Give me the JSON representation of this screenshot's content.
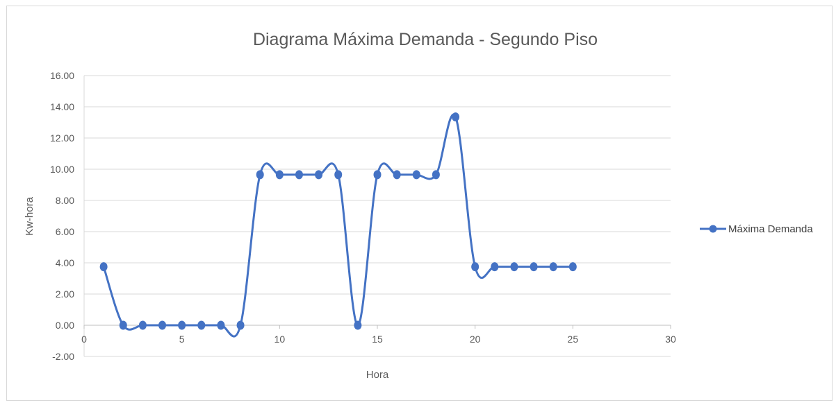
{
  "chart_data": {
    "type": "scatter",
    "title": "Diagrama Máxima Demanda - Segundo Piso",
    "xlabel": "Hora",
    "ylabel": "Kw-hora",
    "xlim": [
      0,
      30
    ],
    "ylim": [
      -2,
      16
    ],
    "x_ticks": [
      "0",
      "5",
      "10",
      "15",
      "20",
      "25",
      "30"
    ],
    "x_tick_values": [
      0,
      5,
      10,
      15,
      20,
      25,
      30
    ],
    "y_ticks": [
      "16.00",
      "14.00",
      "12.00",
      "10.00",
      "8.00",
      "6.00",
      "4.00",
      "2.00",
      "0.00",
      "-2.00"
    ],
    "y_tick_values": [
      16,
      14,
      12,
      10,
      8,
      6,
      4,
      2,
      0,
      -2
    ],
    "grid": "horizontal",
    "legend_position": "right",
    "smoothed": true,
    "series": [
      {
        "name": "Máxima Demanda",
        "color": "#4472c4",
        "x": [
          1,
          2,
          3,
          4,
          5,
          6,
          7,
          8,
          9,
          10,
          11,
          12,
          13,
          14,
          15,
          16,
          17,
          18,
          19,
          20,
          21,
          22,
          23,
          24,
          25
        ],
        "y": [
          3.75,
          0,
          0,
          0,
          0,
          0,
          0,
          0,
          9.65,
          9.65,
          9.65,
          9.65,
          9.65,
          0,
          9.65,
          9.65,
          9.65,
          9.65,
          13.35,
          3.75,
          3.75,
          3.75,
          3.75,
          3.75,
          3.75
        ]
      }
    ]
  }
}
